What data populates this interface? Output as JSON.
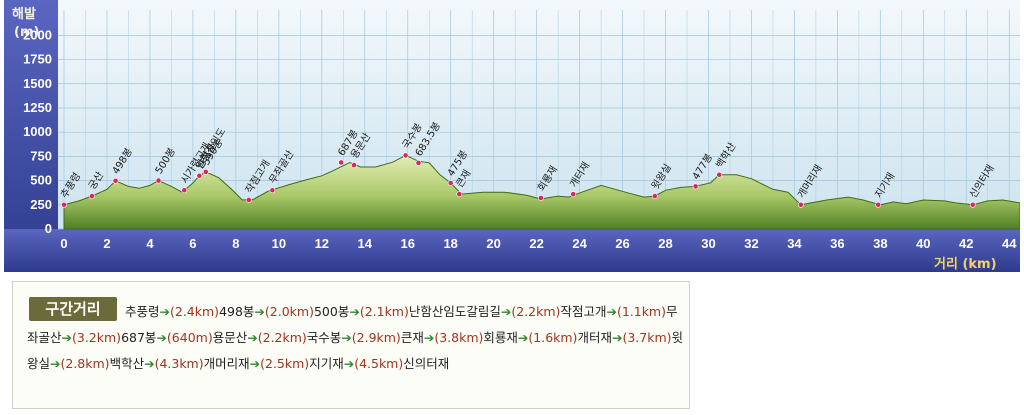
{
  "chart_data": {
    "type": "area",
    "ylabel": "해발",
    "yunit": "(m)",
    "xlabel": "거리 (km)",
    "xlim": [
      0,
      44.5
    ],
    "ylim": [
      0,
      2200
    ],
    "grid": true,
    "yticks": [
      0,
      250,
      500,
      750,
      1000,
      1250,
      1500,
      1750,
      2000
    ],
    "xticks": [
      0,
      2,
      4,
      6,
      8,
      10,
      12,
      14,
      16,
      18,
      20,
      22,
      24,
      26,
      28,
      30,
      32,
      34,
      36,
      38,
      40,
      42,
      44
    ],
    "series": [
      {
        "x": [
          0,
          0.7,
          1.3,
          2,
          2.4,
          3,
          3.5,
          4,
          4.4,
          5,
          5.5,
          6,
          6.3,
          6.6,
          7.2,
          7.8,
          8.3,
          8.8,
          9.5,
          10.5,
          11.3,
          12,
          12.6,
          13.3,
          13.8,
          14.5,
          15.3,
          15.9,
          16.5,
          17,
          17.5,
          18,
          18.5,
          19.5,
          20.5,
          21.5,
          22.2,
          23,
          23.5,
          24.1,
          25,
          25.5,
          26.3,
          27,
          27.5,
          28,
          28.7,
          29.4,
          30.1,
          30.5,
          31.3,
          32,
          33,
          33.7,
          34.3,
          35.5,
          36.5,
          37.2,
          38,
          38.6,
          39.2,
          40,
          41,
          41.5,
          42.3,
          43,
          43.7,
          44.5
        ],
        "y": [
          250,
          290,
          340,
          410,
          498,
          440,
          420,
          450,
          500,
          440,
          380,
          475,
          550,
          590,
          530,
          410,
          300,
          305,
          390,
          460,
          510,
          550,
          610,
          687,
          640,
          640,
          690,
          760,
          700,
          683,
          560,
          475,
          360,
          380,
          380,
          350,
          310,
          340,
          330,
          380,
          450,
          420,
          370,
          330,
          340,
          400,
          430,
          440,
          477,
          560,
          560,
          520,
          410,
          380,
          250,
          300,
          330,
          300,
          250,
          280,
          260,
          300,
          290,
          270,
          250,
          290,
          300,
          270
        ]
      }
    ],
    "points": [
      {
        "x": 0,
        "y": 250,
        "label": "추풍령"
      },
      {
        "x": 1.3,
        "y": 340,
        "label": "궁산"
      },
      {
        "x": 2.4,
        "y": 498,
        "label": "498봉"
      },
      {
        "x": 4.4,
        "y": 500,
        "label": "500봉"
      },
      {
        "x": 5.6,
        "y": 400,
        "label": "시가령고개"
      },
      {
        "x": 6.3,
        "y": 550,
        "label": "난함산임도"
      },
      {
        "x": 6.3,
        "y": 550,
        "label": "갈림길"
      },
      {
        "x": 6.6,
        "y": 590,
        "label": "590봉"
      },
      {
        "x": 8.6,
        "y": 300,
        "label": "작점고개"
      },
      {
        "x": 9.7,
        "y": 400,
        "label": "무좌골산"
      },
      {
        "x": 12.9,
        "y": 687,
        "label": "687봉"
      },
      {
        "x": 13.5,
        "y": 660,
        "label": "용문산"
      },
      {
        "x": 15.9,
        "y": 760,
        "label": "국수봉"
      },
      {
        "x": 16.5,
        "y": 683,
        "label": "683.5봉"
      },
      {
        "x": 18,
        "y": 475,
        "label": "475봉"
      },
      {
        "x": 18.4,
        "y": 360,
        "label": "큰재"
      },
      {
        "x": 22.2,
        "y": 320,
        "label": "회룡재"
      },
      {
        "x": 23.7,
        "y": 360,
        "label": "개터재"
      },
      {
        "x": 27.5,
        "y": 340,
        "label": "윗왕실"
      },
      {
        "x": 29.4,
        "y": 440,
        "label": "477봉"
      },
      {
        "x": 30.5,
        "y": 560,
        "label": "백학산"
      },
      {
        "x": 34.3,
        "y": 250,
        "label": "개머리재"
      },
      {
        "x": 37.9,
        "y": 250,
        "label": "지기재"
      },
      {
        "x": 42.3,
        "y": 250,
        "label": "신의터재"
      }
    ]
  },
  "route": {
    "title": "구간거리",
    "arrow": "➔",
    "segments": [
      {
        "place": "추풍령",
        "distance": "(2.4km)"
      },
      {
        "place": "498봉",
        "distance": "(2.0km)"
      },
      {
        "place": "500봉",
        "distance": "(2.1km)"
      },
      {
        "place": "난함산임도갈림길",
        "distance": "(2.2km)"
      },
      {
        "place": "작점고개",
        "distance": "(1.1km)"
      },
      {
        "place": "무좌골산",
        "distance": "(3.2km)"
      },
      {
        "place": "687봉",
        "distance": "(640m)"
      },
      {
        "place": "용문산",
        "distance": "(2.2km)"
      },
      {
        "place": "국수봉",
        "distance": "(2.9km)"
      },
      {
        "place": "큰재",
        "distance": "(3.8km)"
      },
      {
        "place": "회룡재",
        "distance": "(1.6km)"
      },
      {
        "place": "개터재",
        "distance": "(3.7km)"
      },
      {
        "place": "윗왕실",
        "distance": "(2.8km)"
      },
      {
        "place": "백학산",
        "distance": "(4.3km)"
      },
      {
        "place": "개머리재",
        "distance": "(2.5km)"
      },
      {
        "place": "지기재",
        "distance": "(4.5km)"
      },
      {
        "place": "신의터재",
        "distance": ""
      }
    ]
  },
  "colors": {
    "sky_top": "#eef6fb",
    "sky_bottom": "#cfe6f2",
    "axis_band": "#3e4aa3",
    "terrain_light": "#d7e5a0",
    "terrain_dark": "#5f8f2c",
    "marker": "#d8265a",
    "route_arrow": "#2a8a2a",
    "route_distance": "#a0341f",
    "xlabel_color": "#f2d36b"
  }
}
